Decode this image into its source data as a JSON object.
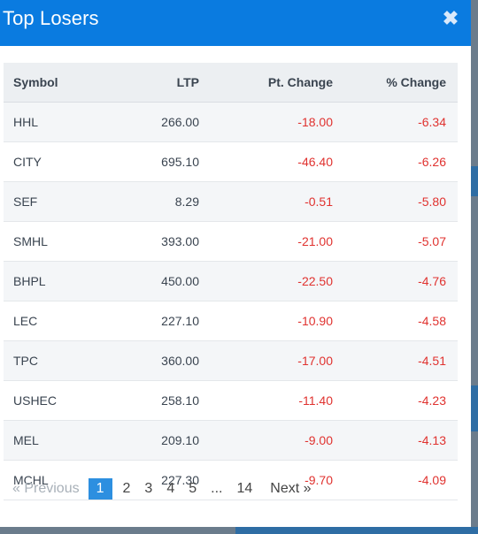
{
  "modal": {
    "title": "Top Losers",
    "close_symbol": "✖"
  },
  "table": {
    "columns": [
      "Symbol",
      "LTP",
      "Pt. Change",
      "% Change"
    ],
    "rows": [
      [
        "HHL",
        "266.00",
        "-18.00",
        "-6.34"
      ],
      [
        "CITY",
        "695.10",
        "-46.40",
        "-6.26"
      ],
      [
        "SEF",
        "8.29",
        "-0.51",
        "-5.80"
      ],
      [
        "SMHL",
        "393.00",
        "-21.00",
        "-5.07"
      ],
      [
        "BHPL",
        "450.00",
        "-22.50",
        "-4.76"
      ],
      [
        "LEC",
        "227.10",
        "-10.90",
        "-4.58"
      ],
      [
        "TPC",
        "360.00",
        "-17.00",
        "-4.51"
      ],
      [
        "USHEC",
        "258.10",
        "-11.40",
        "-4.23"
      ],
      [
        "MEL",
        "209.10",
        "-9.00",
        "-4.13"
      ],
      [
        "MCHL",
        "227.30",
        "-9.70",
        "-4.09"
      ]
    ]
  },
  "pagination": {
    "prev_label": "« Previous",
    "pages": [
      "1",
      "2",
      "3",
      "4",
      "5",
      "...",
      "14"
    ],
    "active_page": "1",
    "next_label": "Next »"
  },
  "colors": {
    "header": "#0a7be0",
    "negative": "#e0322f",
    "active_page": "#2d8fe0"
  }
}
